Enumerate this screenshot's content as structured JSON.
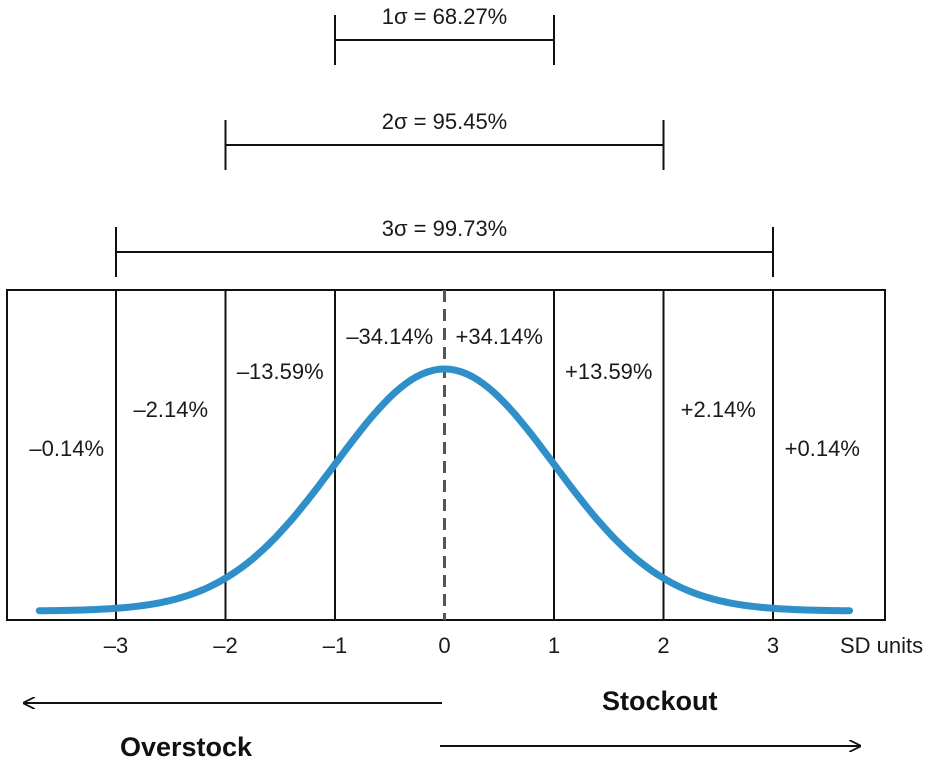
{
  "chart_data": {
    "type": "line",
    "title": "",
    "xlabel": "SD units",
    "ylabel": "",
    "xlim": [
      -3.7,
      3.9
    ],
    "x_ticks": [
      "–3",
      "–2",
      "–1",
      "0",
      "1",
      "2",
      "3"
    ],
    "x_tick_values": [
      -3,
      -2,
      -1,
      0,
      1,
      2,
      3
    ],
    "vertical_grid_at": [
      -3,
      -2,
      -1,
      1,
      2,
      3
    ],
    "mean_line": {
      "x": 0,
      "style": "dashed"
    },
    "curve": {
      "name": "",
      "distribution": "standard normal",
      "color": "#2f8fc8"
    },
    "band_percentages": [
      {
        "range": [
          -3.9,
          -3
        ],
        "label": "–0.14%"
      },
      {
        "range": [
          -3,
          -2
        ],
        "label": "–2.14%"
      },
      {
        "range": [
          -2,
          -1
        ],
        "label": "–13.59%"
      },
      {
        "range": [
          -1,
          0
        ],
        "label": "–34.14%"
      },
      {
        "range": [
          0,
          1
        ],
        "label": "+34.14%"
      },
      {
        "range": [
          1,
          2
        ],
        "label": "+13.59%"
      },
      {
        "range": [
          2,
          3
        ],
        "label": "+2.14%"
      },
      {
        "range": [
          3,
          3.9
        ],
        "label": "+0.14%"
      }
    ],
    "sigma_ranges": [
      {
        "from": -1,
        "to": 1,
        "label": "1σ = 68.27%"
      },
      {
        "from": -2,
        "to": 2,
        "label": "2σ = 95.45%"
      },
      {
        "from": -3,
        "to": 3,
        "label": "3σ = 99.73%"
      }
    ]
  },
  "arrows": {
    "left": {
      "label": "Overstock",
      "direction": "left"
    },
    "right": {
      "label": "Stockout",
      "direction": "right"
    }
  }
}
